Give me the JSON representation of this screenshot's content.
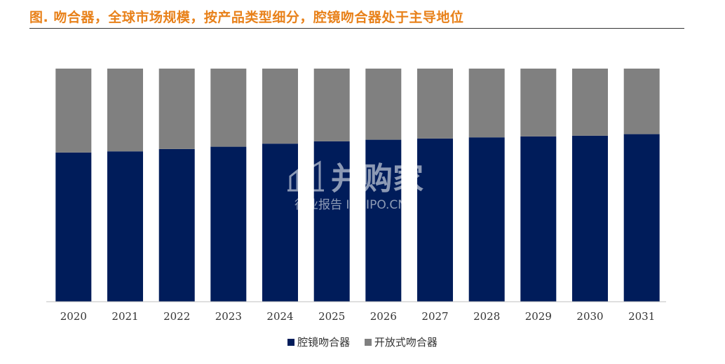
{
  "header": {
    "title": "图.  吻合器，全球市场规模，按产品类型细分，腔镜吻合器处于主导地位"
  },
  "watermark": {
    "brand": "并购家",
    "subtitle": "行业报告 IPOIPO.CN"
  },
  "colors": {
    "series_1": "#001C5A",
    "series_2": "#808080",
    "title": "#E8811A"
  },
  "chart_data": {
    "type": "bar",
    "stacked": true,
    "normalized": true,
    "categories": [
      "2020",
      "2021",
      "2022",
      "2023",
      "2024",
      "2025",
      "2026",
      "2027",
      "2028",
      "2029",
      "2030",
      "2031"
    ],
    "series": [
      {
        "name": "腔镜吻合器",
        "values": [
          0.64,
          0.645,
          0.655,
          0.665,
          0.678,
          0.688,
          0.695,
          0.7,
          0.705,
          0.709,
          0.712,
          0.719
        ]
      },
      {
        "name": "开放式吻合器",
        "values": [
          0.36,
          0.355,
          0.345,
          0.335,
          0.322,
          0.312,
          0.305,
          0.3,
          0.295,
          0.291,
          0.288,
          0.281
        ]
      }
    ],
    "ylim": [
      0,
      1
    ],
    "grid": false,
    "legend_position": "bottom"
  }
}
